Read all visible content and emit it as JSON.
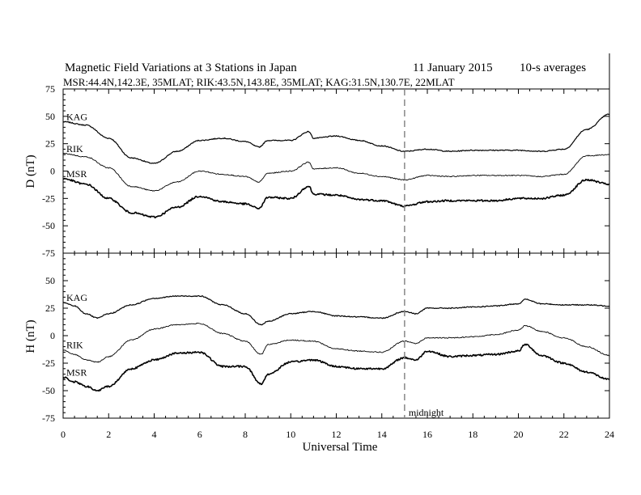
{
  "title": "Magnetic Field Variations at 3 Stations in Japan",
  "date": "11 January 2015",
  "averaging": "10-s averages",
  "subtitle": "MSR:44.4N,142.3E, 35MLAT;  RIK:43.5N,143.8E, 35MLAT;  KAG:31.5N,130.7E, 22MLAT",
  "chart_data": [
    {
      "type": "line",
      "ylabel": "D (nT)",
      "xlabel": "",
      "xlim": [
        0,
        24
      ],
      "ylim": [
        -75,
        75
      ],
      "yticks": [
        75,
        50,
        25,
        0,
        -25,
        -50,
        -75
      ],
      "series": [
        {
          "name": "KAG",
          "x": [
            0,
            1,
            2,
            3,
            4,
            5,
            6,
            7,
            8,
            8.6,
            9,
            10,
            10.8,
            11,
            12,
            13,
            14,
            15,
            16,
            17,
            18,
            19,
            20,
            21,
            22,
            23,
            24
          ],
          "values": [
            45,
            42,
            30,
            12,
            7,
            18,
            28,
            30,
            27,
            22,
            28,
            28,
            36,
            30,
            32,
            28,
            23,
            18,
            20,
            18,
            19,
            19,
            19,
            18,
            20,
            38,
            52
          ]
        },
        {
          "name": "RIK",
          "x": [
            0,
            1,
            2,
            3,
            4,
            5,
            6,
            7,
            8,
            8.6,
            9,
            10,
            10.8,
            11,
            12,
            13,
            14,
            15,
            16,
            17,
            18,
            19,
            20,
            21,
            22,
            23,
            24
          ],
          "values": [
            16,
            13,
            3,
            -14,
            -18,
            -10,
            0,
            -3,
            -5,
            -10,
            -2,
            0,
            8,
            2,
            3,
            -2,
            -5,
            -8,
            -4,
            -5,
            -4,
            -4,
            -4,
            -5,
            -3,
            14,
            15
          ]
        },
        {
          "name": "MSR",
          "x": [
            0,
            1,
            2,
            3,
            4,
            5,
            6,
            7,
            8,
            8.6,
            9,
            10,
            10.8,
            11,
            12,
            13,
            14,
            15,
            16,
            17,
            18,
            19,
            20,
            21,
            22,
            23,
            24
          ],
          "values": [
            -7,
            -12,
            -25,
            -38,
            -42,
            -33,
            -23,
            -28,
            -30,
            -34,
            -24,
            -25,
            -14,
            -21,
            -22,
            -26,
            -27,
            -32,
            -28,
            -27,
            -27,
            -27,
            -25,
            -25,
            -22,
            -8,
            -12
          ]
        }
      ]
    },
    {
      "type": "line",
      "ylabel": "H (nT)",
      "xlabel": "Universal Time",
      "xlim": [
        0,
        24
      ],
      "ylim": [
        -75,
        75
      ],
      "yticks": [
        50,
        25,
        0,
        -25,
        -50,
        -75
      ],
      "xticks": [
        0,
        2,
        4,
        6,
        8,
        10,
        12,
        14,
        16,
        18,
        20,
        22,
        24
      ],
      "series": [
        {
          "name": "KAG",
          "x": [
            0,
            0.5,
            1,
            1.5,
            2,
            3,
            4,
            5,
            6,
            7,
            8,
            8.7,
            9,
            10,
            11,
            12,
            13,
            14,
            15,
            15.5,
            16,
            17,
            18,
            19,
            20,
            20.3,
            21,
            22,
            23,
            24
          ],
          "values": [
            30,
            27,
            20,
            16,
            20,
            28,
            34,
            36,
            36,
            28,
            20,
            10,
            13,
            20,
            22,
            18,
            17,
            16,
            22,
            20,
            25,
            25,
            26,
            27,
            29,
            33,
            29,
            28,
            28,
            27
          ]
        },
        {
          "name": "RIK",
          "x": [
            0,
            0.5,
            1,
            1.5,
            2,
            3,
            4,
            5,
            6,
            7,
            8,
            8.7,
            9,
            10,
            11,
            12,
            13,
            14,
            15,
            15.5,
            16,
            17,
            18,
            19,
            20,
            20.3,
            21,
            22,
            23,
            24
          ],
          "values": [
            -13,
            -17,
            -22,
            -24,
            -19,
            -4,
            6,
            10,
            11,
            2,
            -5,
            -17,
            -8,
            -4,
            -5,
            -12,
            -14,
            -15,
            -5,
            -7,
            -2,
            -2,
            -1,
            1,
            5,
            9,
            4,
            -2,
            -10,
            -18
          ]
        },
        {
          "name": "MSR",
          "x": [
            0,
            0.5,
            1,
            1.5,
            2,
            3,
            4,
            5,
            6,
            7,
            8,
            8.7,
            9,
            10,
            11,
            12,
            13,
            14,
            15,
            15.5,
            16,
            17,
            18,
            19,
            20,
            20.3,
            21,
            22,
            23,
            24
          ],
          "values": [
            -38,
            -42,
            -46,
            -50,
            -46,
            -30,
            -22,
            -16,
            -15,
            -28,
            -28,
            -44,
            -35,
            -24,
            -22,
            -28,
            -30,
            -30,
            -20,
            -22,
            -14,
            -19,
            -18,
            -17,
            -14,
            -8,
            -18,
            -25,
            -33,
            -40
          ]
        }
      ]
    }
  ],
  "annotation": {
    "label": "midnight",
    "x": 15
  }
}
